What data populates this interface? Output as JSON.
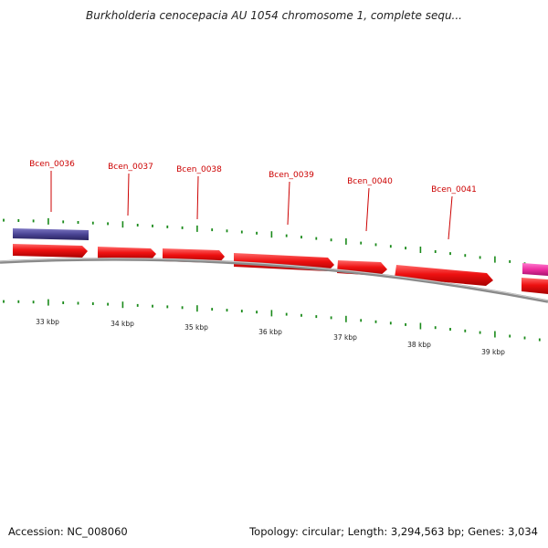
{
  "title": "Burkholderia cenocepacia AU 1054 chromosome 1, complete sequ...",
  "footer": {
    "accession": "Accession: NC_008060",
    "summary": "Topology: circular; Length: 3,294,563 bp; Genes: 3,034"
  },
  "colors": {
    "cds": "#ee1111",
    "other_feature": "#4a4494",
    "third_feature": "#ee2fa0",
    "ticks": "#1a8a1a",
    "label": "#cc0000",
    "backbone": "#888888"
  },
  "ruler_labels": [
    "33 kbp",
    "34 kbp",
    "35 kbp",
    "36 kbp",
    "37 kbp",
    "38 kbp",
    "39 kbp"
  ],
  "gene_labels": [
    "Bcen_0036",
    "Bcen_0037",
    "Bcen_0038",
    "Bcen_0039",
    "Bcen_0040",
    "Bcen_0041"
  ]
}
